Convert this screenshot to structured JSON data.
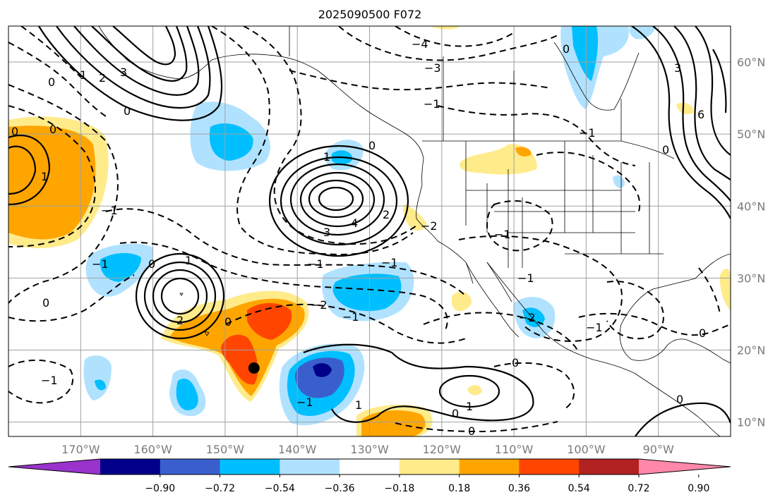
{
  "title": "2025090500 F072",
  "map": {
    "lon_range": [
      -180,
      -80
    ],
    "lat_range": [
      8,
      65
    ],
    "lon_ticks": [
      {
        "value": -170,
        "label": "170°W"
      },
      {
        "value": -160,
        "label": "160°W"
      },
      {
        "value": -150,
        "label": "150°W"
      },
      {
        "value": -140,
        "label": "140°W"
      },
      {
        "value": -130,
        "label": "130°W"
      },
      {
        "value": -120,
        "label": "120°W"
      },
      {
        "value": -110,
        "label": "110°W"
      },
      {
        "value": -100,
        "label": "100°W"
      },
      {
        "value": -90,
        "label": "90°W"
      }
    ],
    "lat_ticks": [
      {
        "value": 60,
        "label": "60°N"
      },
      {
        "value": 50,
        "label": "50°N"
      },
      {
        "value": 40,
        "label": "40°N"
      },
      {
        "value": 30,
        "label": "30°N"
      },
      {
        "value": 20,
        "label": "20°N"
      },
      {
        "value": 10,
        "label": "10°N"
      }
    ],
    "grid": true,
    "storm_marker": {
      "lon": -146,
      "lat": 17.5
    }
  },
  "colorbar": {
    "colors": [
      "#9933cc",
      "#00008b",
      "#3a5fcd",
      "#00bfff",
      "#b0e2ff",
      "#ffffff",
      "#ffeb8a",
      "#ffa500",
      "#ff4500",
      "#b22222",
      "#ff88aa"
    ],
    "tick_labels": [
      "−0.90",
      "−0.72",
      "−0.54",
      "−0.36",
      "−0.18",
      "0.18",
      "0.36",
      "0.54",
      "0.72",
      "0.90"
    ],
    "extend": "both"
  },
  "contour_labels": [
    "0",
    "1",
    "2",
    "3",
    "4",
    "6",
    "−1",
    "−2",
    "−3",
    "−4"
  ]
}
